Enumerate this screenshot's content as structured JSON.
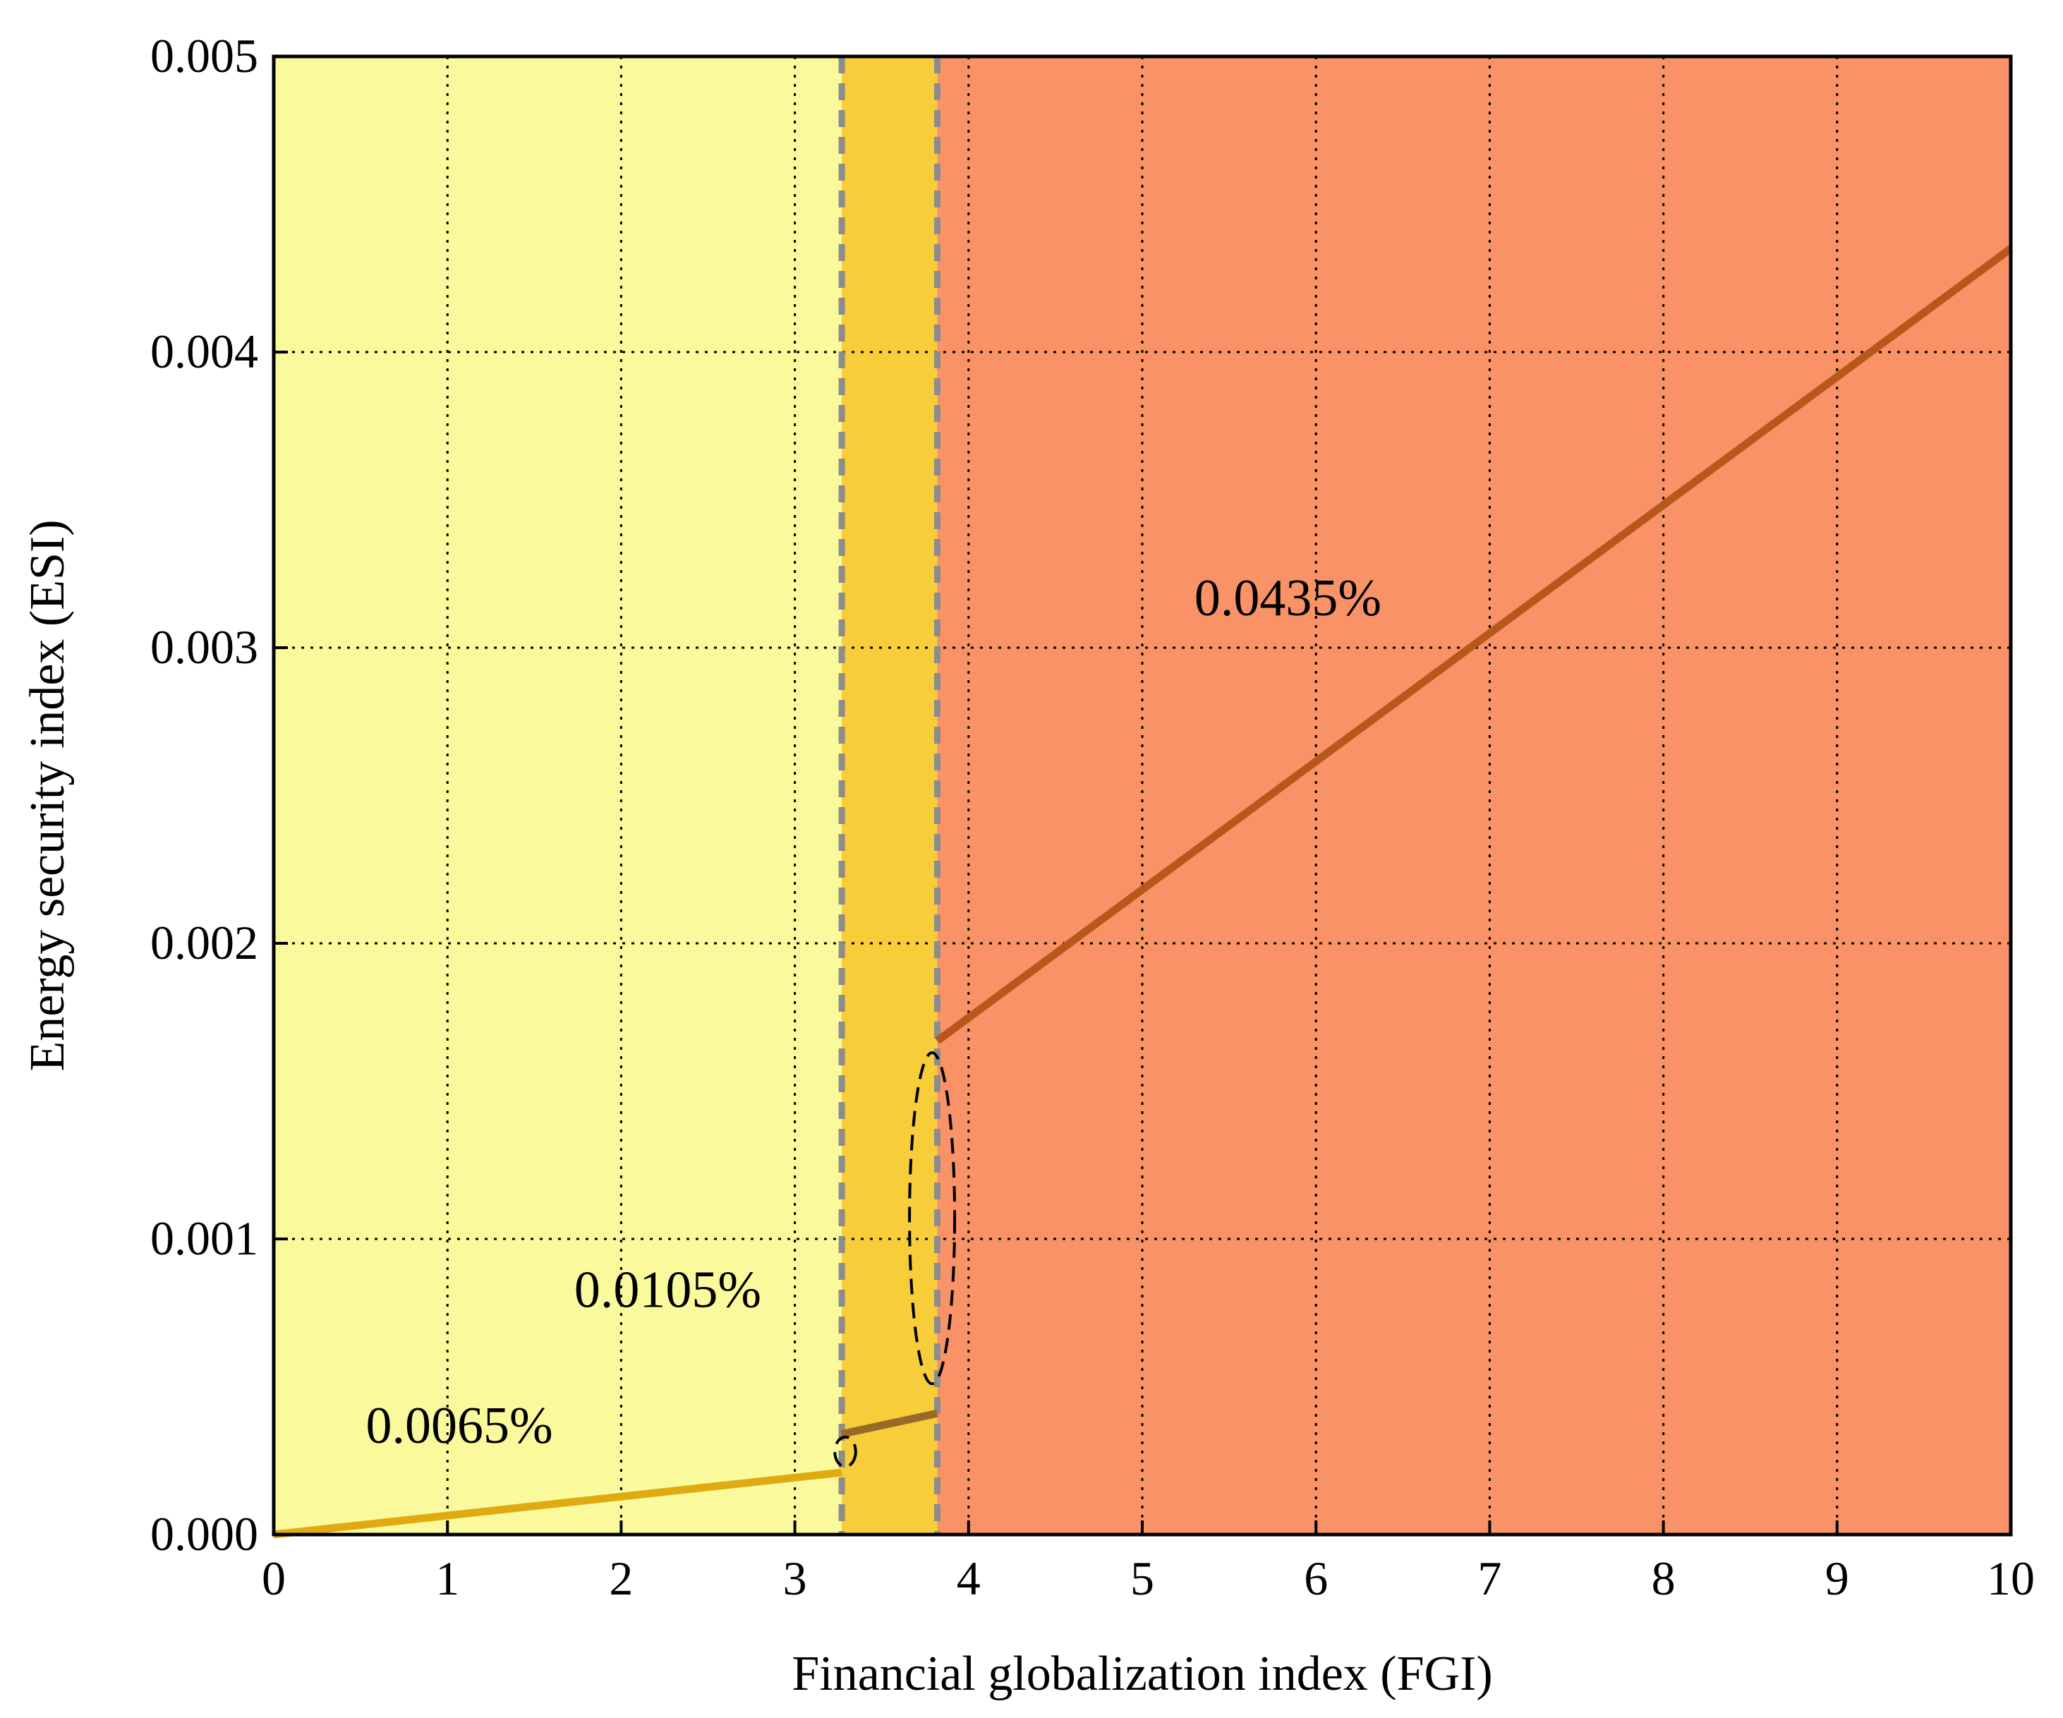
{
  "chart_data": {
    "type": "line",
    "xlabel": "Financial globalization index (FGI)",
    "ylabel": "Energy security index (ESI)",
    "xlim": [
      0,
      10
    ],
    "ylim": [
      0,
      0.005
    ],
    "x_ticks": [
      "0",
      "1",
      "2",
      "3",
      "4",
      "5",
      "6",
      "7",
      "8",
      "9",
      "10"
    ],
    "y_ticks": [
      "0.000",
      "0.001",
      "0.002",
      "0.003",
      "0.004",
      "0.005"
    ],
    "grid": true,
    "regimes": [
      {
        "x_start": 0,
        "x_end": 3.27,
        "color": "#FAFA9C"
      },
      {
        "x_start": 3.27,
        "x_end": 3.82,
        "color": "#F7CD3A"
      },
      {
        "x_start": 3.82,
        "x_end": 10,
        "color": "#F99266"
      }
    ],
    "thresholds": [
      3.27,
      3.82
    ],
    "series": [
      {
        "x": [
          0,
          3.27
        ],
        "y": [
          0,
          0.00021
        ],
        "color": "#E0AA10"
      },
      {
        "x": [
          3.27,
          3.82
        ],
        "y": [
          0.00034,
          0.00041
        ],
        "color": "#9A6A28"
      },
      {
        "x": [
          3.82,
          10
        ],
        "y": [
          0.00167,
          0.00435
        ],
        "color": "#B8571A"
      }
    ],
    "annotations": [
      {
        "text": "0.0065%",
        "x": 0.53,
        "y": 0.00031
      },
      {
        "text": "0.0105%",
        "x": 1.73,
        "y": 0.00077
      },
      {
        "text": "0.0435%",
        "x": 5.3,
        "y": 0.00311
      }
    ],
    "highlight_ellipses": [
      {
        "cx": 3.29,
        "cy": 0.00028,
        "rx": 0.06,
        "ry": 5e-05
      },
      {
        "cx": 3.79,
        "cy": 0.00107,
        "rx": 0.13,
        "ry": 0.00056
      }
    ]
  }
}
